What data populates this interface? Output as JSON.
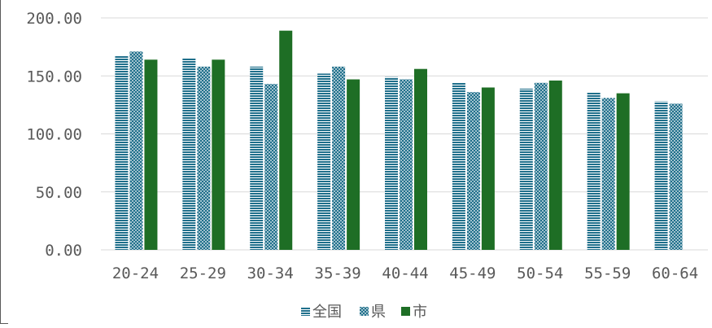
{
  "chart_data": {
    "type": "bar",
    "categories": [
      "20-24",
      "25-29",
      "30-34",
      "35-39",
      "40-44",
      "45-49",
      "50-54",
      "55-59",
      "60-64"
    ],
    "series": [
      {
        "name": "全国",
        "values": [
          167,
          165,
          158,
          152,
          149,
          144,
          139,
          136,
          128
        ],
        "color": "#1f6f8b",
        "pattern": "horizontal-lines"
      },
      {
        "name": "県",
        "values": [
          171,
          158,
          143,
          158,
          147,
          136,
          144,
          131,
          126
        ],
        "color": "#1f6f8b",
        "pattern": "dots"
      },
      {
        "name": "市",
        "values": [
          164,
          164,
          189,
          147,
          156,
          140,
          146,
          135,
          null
        ],
        "color": "#1e6e25",
        "pattern": "solid"
      }
    ],
    "y_ticks": [
      "0.00",
      "50.00",
      "100.00",
      "150.00",
      "200.00"
    ],
    "ylim": [
      0,
      200
    ],
    "grid": true,
    "legend_position": "bottom-center"
  }
}
